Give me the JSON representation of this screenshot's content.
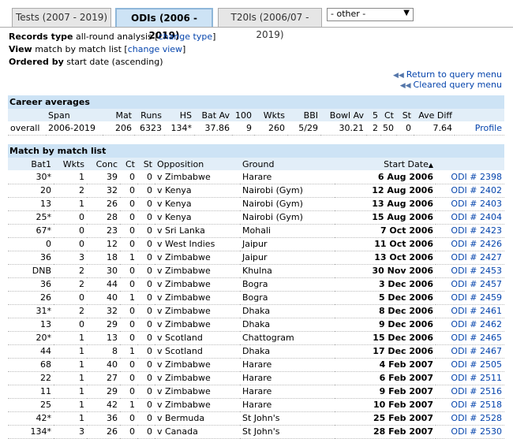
{
  "tabs": [
    {
      "label": "Tests (2007 - 2019)",
      "active": false
    },
    {
      "label": "ODIs (2006 - 2019)",
      "active": true
    },
    {
      "label": "T20Is (2006/07 - 2019)",
      "active": false
    }
  ],
  "other_select": {
    "value": "- other -"
  },
  "records": {
    "type_label": "Records type",
    "type_value": "all-round analysis",
    "type_link": "change type",
    "view_label": "View",
    "view_value": "match by match list",
    "view_link": "change view",
    "order_label": "Ordered by",
    "order_value": "start date (ascending)"
  },
  "links": {
    "return": "Return to query menu",
    "cleared": "Cleared query menu"
  },
  "career": {
    "title": "Career averages",
    "headers": [
      "",
      "Span",
      "Mat",
      "Runs",
      "HS",
      "Bat Av",
      "100",
      "Wkts",
      "BBI",
      "Bowl Av",
      "5",
      "Ct",
      "St",
      "Ave Diff",
      ""
    ],
    "row": [
      "overall",
      "2006-2019",
      "206",
      "6323",
      "134*",
      "37.86",
      "9",
      "260",
      "5/29",
      "30.21",
      "2",
      "50",
      "0",
      "7.64",
      "Profile"
    ]
  },
  "matches": {
    "title": "Match by match list",
    "headers": [
      "Bat1",
      "Wkts",
      "Conc",
      "Ct",
      "St",
      "Opposition",
      "Ground",
      "Start Date",
      ""
    ],
    "rows": [
      [
        "30*",
        "1",
        "39",
        "0",
        "0",
        "v Zimbabwe",
        "Harare",
        "6 Aug 2006",
        "ODI # 2398"
      ],
      [
        "20",
        "2",
        "32",
        "0",
        "0",
        "v Kenya",
        "Nairobi (Gym)",
        "12 Aug 2006",
        "ODI # 2402"
      ],
      [
        "13",
        "1",
        "26",
        "0",
        "0",
        "v Kenya",
        "Nairobi (Gym)",
        "13 Aug 2006",
        "ODI # 2403"
      ],
      [
        "25*",
        "0",
        "28",
        "0",
        "0",
        "v Kenya",
        "Nairobi (Gym)",
        "15 Aug 2006",
        "ODI # 2404"
      ],
      [
        "67*",
        "0",
        "23",
        "0",
        "0",
        "v Sri Lanka",
        "Mohali",
        "7 Oct 2006",
        "ODI # 2423"
      ],
      [
        "0",
        "0",
        "12",
        "0",
        "0",
        "v West Indies",
        "Jaipur",
        "11 Oct 2006",
        "ODI # 2426"
      ],
      [
        "36",
        "3",
        "18",
        "1",
        "0",
        "v Zimbabwe",
        "Jaipur",
        "13 Oct 2006",
        "ODI # 2427"
      ],
      [
        "DNB",
        "2",
        "30",
        "0",
        "0",
        "v Zimbabwe",
        "Khulna",
        "30 Nov 2006",
        "ODI # 2453"
      ],
      [
        "36",
        "2",
        "44",
        "0",
        "0",
        "v Zimbabwe",
        "Bogra",
        "3 Dec 2006",
        "ODI # 2457"
      ],
      [
        "26",
        "0",
        "40",
        "1",
        "0",
        "v Zimbabwe",
        "Bogra",
        "5 Dec 2006",
        "ODI # 2459"
      ],
      [
        "31*",
        "2",
        "32",
        "0",
        "0",
        "v Zimbabwe",
        "Dhaka",
        "8 Dec 2006",
        "ODI # 2461"
      ],
      [
        "13",
        "0",
        "29",
        "0",
        "0",
        "v Zimbabwe",
        "Dhaka",
        "9 Dec 2006",
        "ODI # 2462"
      ],
      [
        "20*",
        "1",
        "13",
        "0",
        "0",
        "v Scotland",
        "Chattogram",
        "15 Dec 2006",
        "ODI # 2465"
      ],
      [
        "44",
        "1",
        "8",
        "1",
        "0",
        "v Scotland",
        "Dhaka",
        "17 Dec 2006",
        "ODI # 2467"
      ],
      [
        "68",
        "1",
        "40",
        "0",
        "0",
        "v Zimbabwe",
        "Harare",
        "4 Feb 2007",
        "ODI # 2505"
      ],
      [
        "22",
        "1",
        "27",
        "0",
        "0",
        "v Zimbabwe",
        "Harare",
        "6 Feb 2007",
        "ODI # 2511"
      ],
      [
        "11",
        "1",
        "29",
        "0",
        "0",
        "v Zimbabwe",
        "Harare",
        "9 Feb 2007",
        "ODI # 2516"
      ],
      [
        "25",
        "1",
        "42",
        "1",
        "0",
        "v Zimbabwe",
        "Harare",
        "10 Feb 2007",
        "ODI # 2518"
      ],
      [
        "42*",
        "1",
        "36",
        "0",
        "0",
        "v Bermuda",
        "St John's",
        "25 Feb 2007",
        "ODI # 2528"
      ],
      [
        "134*",
        "3",
        "26",
        "0",
        "0",
        "v Canada",
        "St John's",
        "28 Feb 2007",
        "ODI # 2530"
      ]
    ]
  }
}
